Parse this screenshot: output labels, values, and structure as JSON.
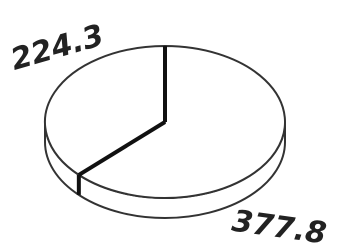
{
  "chart_data": {
    "type": "pie",
    "values": [
      224.3,
      377.8
    ],
    "color": "#ffffff"
  }
}
